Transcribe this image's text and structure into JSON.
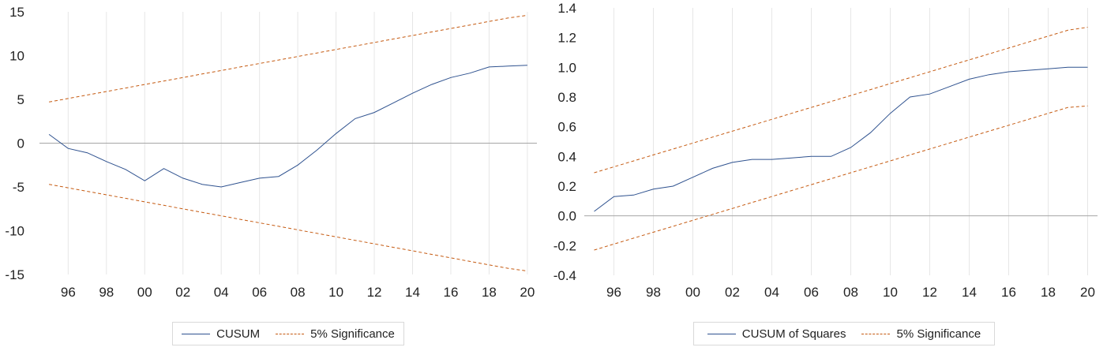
{
  "chart_data": [
    {
      "type": "line",
      "title": "",
      "xlabel": "",
      "ylabel": "",
      "x": [
        1995,
        1996,
        1997,
        1998,
        1999,
        2000,
        2001,
        2002,
        2003,
        2004,
        2005,
        2006,
        2007,
        2008,
        2009,
        2010,
        2011,
        2012,
        2013,
        2014,
        2015,
        2016,
        2017,
        2018,
        2019,
        2020
      ],
      "x_ticks": [
        1996,
        1998,
        2000,
        2002,
        2004,
        2006,
        2008,
        2010,
        2012,
        2014,
        2016,
        2018,
        2020
      ],
      "x_tick_labels": [
        "96",
        "98",
        "00",
        "02",
        "04",
        "06",
        "08",
        "10",
        "12",
        "14",
        "16",
        "18",
        "20"
      ],
      "xlim": [
        1994.5,
        2020.5
      ],
      "ylim": [
        -15,
        15
      ],
      "y_ticks": [
        -15,
        -10,
        -5,
        0,
        5,
        10,
        15
      ],
      "y_tick_labels": [
        "-15",
        "-10",
        "-5",
        "0",
        "5",
        "10",
        "15"
      ],
      "series": [
        {
          "name": "CUSUM",
          "color": "#2f528f",
          "style": "solid",
          "values": [
            1.0,
            -0.6,
            -1.1,
            -2.1,
            -3.0,
            -4.3,
            -2.9,
            -4.0,
            -4.7,
            -5.0,
            -4.5,
            -4.0,
            -3.8,
            -2.5,
            -0.8,
            1.1,
            2.8,
            3.5,
            4.6,
            5.7,
            6.7,
            7.5,
            8.0,
            8.7,
            8.8,
            8.9
          ]
        },
        {
          "name": "5% Significance",
          "color": "#c55a11",
          "style": "dashed",
          "values": [
            4.7,
            5.1,
            5.5,
            5.9,
            6.3,
            6.7,
            7.1,
            7.5,
            7.9,
            8.3,
            8.7,
            9.1,
            9.5,
            9.9,
            10.3,
            10.7,
            11.1,
            11.5,
            11.9,
            12.3,
            12.7,
            13.1,
            13.5,
            13.9,
            14.3,
            14.6
          ]
        },
        {
          "name": "",
          "color": "#c55a11",
          "style": "dashed",
          "values": [
            -4.7,
            -5.1,
            -5.5,
            -5.9,
            -6.3,
            -6.7,
            -7.1,
            -7.5,
            -7.9,
            -8.3,
            -8.7,
            -9.1,
            -9.5,
            -9.9,
            -10.3,
            -10.7,
            -11.1,
            -11.5,
            -11.9,
            -12.3,
            -12.7,
            -13.1,
            -13.5,
            -13.9,
            -14.3,
            -14.6
          ]
        }
      ],
      "legend": {
        "position": "bottom",
        "entries": [
          "CUSUM",
          "5% Significance"
        ]
      },
      "grid": {
        "horizontal": false,
        "vertical": true,
        "zero_line": true
      }
    },
    {
      "type": "line",
      "title": "",
      "xlabel": "",
      "ylabel": "",
      "x": [
        1995,
        1996,
        1997,
        1998,
        1999,
        2000,
        2001,
        2002,
        2003,
        2004,
        2005,
        2006,
        2007,
        2008,
        2009,
        2010,
        2011,
        2012,
        2013,
        2014,
        2015,
        2016,
        2017,
        2018,
        2019,
        2020
      ],
      "x_ticks": [
        1996,
        1998,
        2000,
        2002,
        2004,
        2006,
        2008,
        2010,
        2012,
        2014,
        2016,
        2018,
        2020
      ],
      "x_tick_labels": [
        "96",
        "98",
        "00",
        "02",
        "04",
        "06",
        "08",
        "10",
        "12",
        "14",
        "16",
        "18",
        "20"
      ],
      "xlim": [
        1994.5,
        2020.5
      ],
      "ylim": [
        -0.4,
        1.4
      ],
      "y_ticks": [
        -0.4,
        -0.2,
        0.0,
        0.2,
        0.4,
        0.6,
        0.8,
        1.0,
        1.2,
        1.4
      ],
      "y_tick_labels": [
        "-0.4",
        "-0.2",
        "0.0",
        "0.2",
        "0.4",
        "0.6",
        "0.8",
        "1.0",
        "1.2",
        "1.4"
      ],
      "series": [
        {
          "name": "CUSUM of Squares",
          "color": "#2f528f",
          "style": "solid",
          "values": [
            0.03,
            0.13,
            0.14,
            0.18,
            0.2,
            0.26,
            0.32,
            0.36,
            0.38,
            0.38,
            0.39,
            0.4,
            0.4,
            0.46,
            0.56,
            0.69,
            0.8,
            0.82,
            0.87,
            0.92,
            0.95,
            0.97,
            0.98,
            0.99,
            1.0,
            1.0
          ]
        },
        {
          "name": "5% Significance",
          "color": "#c55a11",
          "style": "dashed",
          "values": [
            0.29,
            0.33,
            0.37,
            0.41,
            0.45,
            0.49,
            0.53,
            0.57,
            0.61,
            0.65,
            0.69,
            0.73,
            0.77,
            0.81,
            0.85,
            0.89,
            0.93,
            0.97,
            1.01,
            1.05,
            1.09,
            1.13,
            1.17,
            1.21,
            1.25,
            1.27
          ]
        },
        {
          "name": "",
          "color": "#c55a11",
          "style": "dashed",
          "values": [
            -0.23,
            -0.19,
            -0.15,
            -0.11,
            -0.07,
            -0.03,
            0.01,
            0.05,
            0.09,
            0.13,
            0.17,
            0.21,
            0.25,
            0.29,
            0.33,
            0.37,
            0.41,
            0.45,
            0.49,
            0.53,
            0.57,
            0.61,
            0.65,
            0.69,
            0.73,
            0.74
          ]
        }
      ],
      "legend": {
        "position": "bottom",
        "entries": [
          "CUSUM of Squares",
          "5% Significance"
        ]
      },
      "grid": {
        "horizontal": false,
        "vertical": true,
        "zero_line": true
      }
    }
  ]
}
